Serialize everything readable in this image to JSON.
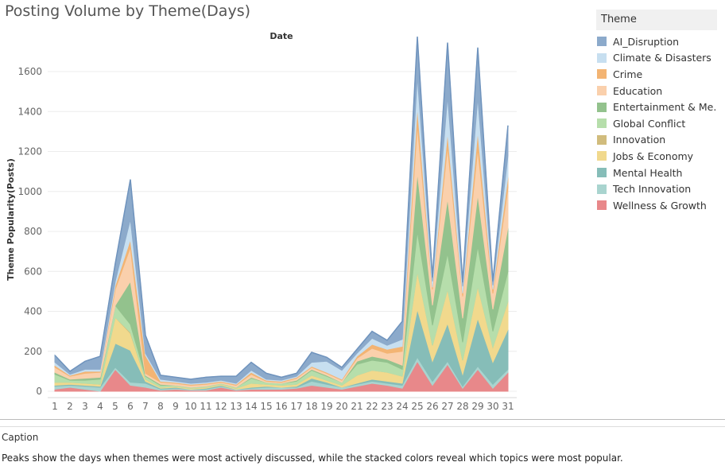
{
  "title": "Posting Volume by Theme(Days)",
  "legend_title": "Theme",
  "caption": {
    "label": "Caption",
    "text": "Peaks show the days when themes were most actively discussed, while the stacked colors reveal which topics were most popular."
  },
  "chart_data": {
    "type": "area",
    "stacked": true,
    "title": "Posting Volume by Theme(Days)",
    "xlabel": "Date",
    "ylabel": "Theme Popularity(Posts)",
    "x": [
      1,
      2,
      3,
      4,
      5,
      6,
      7,
      8,
      9,
      10,
      11,
      12,
      13,
      14,
      15,
      16,
      17,
      18,
      19,
      20,
      21,
      22,
      23,
      24,
      25,
      26,
      27,
      28,
      29,
      30,
      31
    ],
    "yticks": [
      0,
      200,
      400,
      600,
      800,
      1000,
      1200,
      1400,
      1600
    ],
    "ylim": [
      0,
      1700
    ],
    "grid": true,
    "legend_position": "right",
    "series": [
      {
        "name": "Wellness & Growth",
        "color": "#e8888a",
        "values": [
          10,
          20,
          10,
          0,
          110,
          30,
          20,
          5,
          10,
          5,
          5,
          20,
          5,
          10,
          10,
          10,
          15,
          30,
          20,
          10,
          25,
          40,
          30,
          15,
          150,
          30,
          135,
          15,
          110,
          15,
          95
        ]
      },
      {
        "name": "Tech Innovation",
        "color": "#a9d4cf",
        "values": [
          15,
          10,
          15,
          20,
          10,
          15,
          20,
          5,
          5,
          5,
          5,
          5,
          5,
          5,
          10,
          10,
          5,
          20,
          15,
          10,
          10,
          10,
          10,
          15,
          20,
          20,
          15,
          10,
          15,
          20,
          15
        ]
      },
      {
        "name": "Mental Health",
        "color": "#86bdb8",
        "values": [
          5,
          5,
          5,
          5,
          120,
          160,
          10,
          5,
          5,
          0,
          5,
          5,
          0,
          5,
          5,
          0,
          5,
          15,
          10,
          0,
          5,
          10,
          10,
          10,
          240,
          100,
          190,
          60,
          240,
          110,
          200
        ]
      },
      {
        "name": "Jobs & Economy",
        "color": "#f1d98d",
        "values": [
          15,
          10,
          10,
          10,
          130,
          85,
          10,
          5,
          5,
          5,
          5,
          5,
          5,
          20,
          10,
          10,
          10,
          15,
          10,
          10,
          40,
          45,
          45,
          35,
          190,
          80,
          170,
          70,
          160,
          75,
          140
        ]
      },
      {
        "name": "Innovation",
        "color": "#d1bc7d",
        "values": [
          0,
          0,
          0,
          0,
          0,
          5,
          0,
          0,
          0,
          0,
          0,
          0,
          0,
          0,
          0,
          0,
          0,
          0,
          0,
          0,
          0,
          0,
          0,
          0,
          0,
          0,
          0,
          0,
          0,
          0,
          0
        ]
      },
      {
        "name": "Global Conflict",
        "color": "#b6deab",
        "values": [
          40,
          10,
          15,
          25,
          60,
          40,
          15,
          10,
          5,
          5,
          5,
          5,
          5,
          25,
          10,
          10,
          15,
          25,
          20,
          15,
          55,
          50,
          50,
          35,
          200,
          100,
          180,
          90,
          200,
          80,
          150
        ]
      },
      {
        "name": "Entertainment & Me..",
        "color": "#93c28d",
        "values": [
          10,
          5,
          10,
          10,
          0,
          215,
          5,
          5,
          0,
          0,
          0,
          0,
          0,
          5,
          0,
          0,
          5,
          5,
          5,
          0,
          15,
          20,
          15,
          20,
          295,
          100,
          275,
          120,
          260,
          110,
          220
        ]
      },
      {
        "name": "Education",
        "color": "#fad0ac",
        "values": [
          25,
          15,
          25,
          25,
          80,
          170,
          10,
          10,
          10,
          10,
          10,
          5,
          10,
          15,
          5,
          5,
          10,
          10,
          10,
          10,
          15,
          40,
          30,
          70,
          240,
          80,
          260,
          110,
          230,
          80,
          200
        ]
      },
      {
        "name": "Crime",
        "color": "#f3b473",
        "values": [
          10,
          5,
          10,
          5,
          20,
          40,
          90,
          5,
          5,
          5,
          5,
          5,
          5,
          10,
          5,
          5,
          5,
          5,
          5,
          5,
          10,
          20,
          20,
          25,
          90,
          10,
          70,
          15,
          85,
          20,
          55
        ]
      },
      {
        "name": "Climate & Disasters",
        "color": "#c7dff0",
        "values": [
          15,
          5,
          10,
          10,
          20,
          100,
          10,
          10,
          5,
          5,
          5,
          5,
          5,
          10,
          5,
          5,
          5,
          20,
          55,
          45,
          15,
          30,
          20,
          35,
          150,
          30,
          180,
          35,
          170,
          20,
          105
        ]
      },
      {
        "name": "AI_Disruption",
        "color": "#8caacb",
        "values": [
          35,
          15,
          40,
          65,
          90,
          200,
          90,
          20,
          20,
          20,
          25,
          20,
          35,
          40,
          30,
          15,
          15,
          50,
          20,
          15,
          20,
          35,
          25,
          90,
          200,
          20,
          270,
          20,
          250,
          20,
          150
        ]
      }
    ]
  }
}
